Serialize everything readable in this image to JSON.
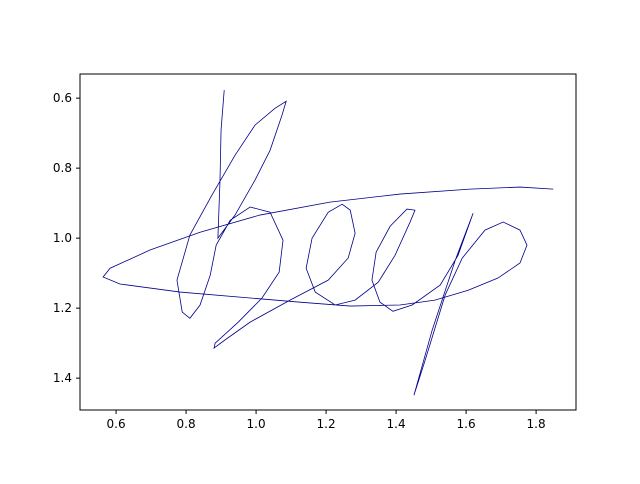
{
  "chart_data": {
    "type": "line",
    "x": [
      0.909,
      0.9,
      0.897,
      0.891,
      0.94,
      0.997,
      1.04,
      1.074,
      1.086,
      1.054,
      0.997,
      0.94,
      0.874,
      0.811,
      0.774,
      0.789,
      0.811,
      0.84,
      0.869,
      0.886,
      0.926,
      0.983,
      1.04,
      1.077,
      1.066,
      1.017,
      0.949,
      0.883,
      0.88,
      0.911,
      0.983,
      1.097,
      1.206,
      1.263,
      1.283,
      1.269,
      1.246,
      1.206,
      1.16,
      1.143,
      1.169,
      1.226,
      1.283,
      1.349,
      1.397,
      1.44,
      1.454,
      1.431,
      1.383,
      1.343,
      1.331,
      1.354,
      1.391,
      1.446,
      1.526,
      1.577,
      1.62,
      1.569,
      1.503,
      1.451,
      1.483,
      1.54,
      1.589,
      1.654,
      1.706,
      1.754,
      1.774,
      1.754,
      1.691,
      1.606,
      1.511,
      1.411,
      1.269,
      1.126,
      0.983,
      0.783,
      0.611,
      0.563,
      0.583,
      0.697,
      0.84,
      1.011,
      1.211,
      1.411,
      1.611,
      1.754,
      1.849
    ],
    "series": [
      {
        "color": "#00008b",
        "values": [
          0.577,
          0.691,
          0.834,
          1.0,
          0.934,
          0.834,
          0.749,
          0.649,
          0.609,
          0.629,
          0.677,
          0.763,
          0.877,
          0.991,
          1.12,
          1.211,
          1.229,
          1.191,
          1.106,
          1.02,
          0.949,
          0.911,
          0.926,
          1.006,
          1.097,
          1.171,
          1.24,
          1.3,
          1.314,
          1.291,
          1.24,
          1.177,
          1.12,
          1.057,
          0.986,
          0.92,
          0.903,
          0.926,
          1.0,
          1.086,
          1.154,
          1.191,
          1.177,
          1.126,
          1.049,
          0.954,
          0.92,
          0.917,
          0.966,
          1.04,
          1.12,
          1.183,
          1.209,
          1.191,
          1.134,
          1.049,
          0.929,
          1.063,
          1.263,
          1.449,
          1.349,
          1.163,
          1.057,
          0.977,
          0.954,
          0.977,
          1.02,
          1.071,
          1.114,
          1.149,
          1.177,
          1.191,
          1.194,
          1.183,
          1.171,
          1.154,
          1.131,
          1.111,
          1.086,
          1.034,
          0.983,
          0.934,
          0.897,
          0.874,
          0.86,
          0.854,
          0.86
        ]
      }
    ],
    "xlim": [
      0.497,
      1.914
    ],
    "ylim": [
      1.491,
      0.531
    ],
    "xticks": [
      0.6,
      0.8,
      {
        "value": 1,
        "label": "1.0"
      },
      1.2,
      1.4,
      1.6,
      1.8
    ],
    "yticks": [
      0.6,
      0.8,
      {
        "value": 1,
        "label": "1.0"
      },
      1.2,
      1.4
    ]
  }
}
